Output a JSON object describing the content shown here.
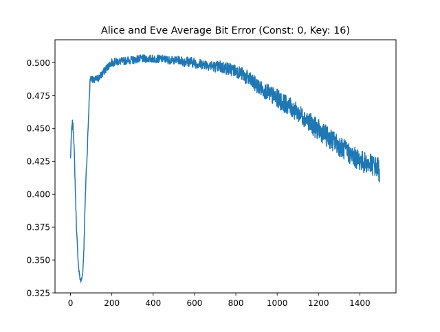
{
  "chart_data": {
    "type": "line",
    "title": "Alice and Eve Average Bit Error (Const: 0, Key: 16)",
    "xlabel": "",
    "ylabel": "",
    "xlim": [
      -75,
      1575
    ],
    "ylim": [
      0.325,
      0.5175
    ],
    "x_ticks": [
      0,
      200,
      400,
      600,
      800,
      1000,
      1200,
      1400
    ],
    "x_tick_labels": [
      "0",
      "200",
      "400",
      "600",
      "800",
      "1000",
      "1200",
      "1400"
    ],
    "y_ticks": [
      0.325,
      0.35,
      0.375,
      0.4,
      0.425,
      0.45,
      0.475,
      0.5
    ],
    "y_tick_labels": [
      "0.325",
      "0.350",
      "0.375",
      "0.400",
      "0.425",
      "0.450",
      "0.475",
      "0.500"
    ],
    "grid": false,
    "legend": "none",
    "series": [
      {
        "color": "#1f77b4",
        "x": [
          0,
          5,
          10,
          15,
          20,
          25,
          30,
          35,
          40,
          45,
          50,
          55,
          60,
          65,
          70,
          75,
          80,
          85,
          90,
          95,
          100,
          110,
          120,
          130,
          140,
          150,
          160,
          170,
          180,
          190,
          200,
          225,
          250,
          275,
          300,
          325,
          350,
          375,
          400,
          425,
          450,
          475,
          500,
          525,
          550,
          575,
          600,
          625,
          650,
          675,
          700,
          725,
          750,
          775,
          800,
          825,
          850,
          875,
          900,
          925,
          950,
          975,
          1000,
          1025,
          1050,
          1075,
          1100,
          1125,
          1150,
          1175,
          1200,
          1225,
          1250,
          1275,
          1300,
          1325,
          1350,
          1375,
          1400,
          1425,
          1450,
          1475,
          1485,
          1490,
          1495
        ],
        "values": [
          0.427,
          0.447,
          0.455,
          0.446,
          0.422,
          0.395,
          0.37,
          0.355,
          0.343,
          0.337,
          0.334,
          0.336,
          0.342,
          0.36,
          0.388,
          0.414,
          0.428,
          0.45,
          0.47,
          0.487,
          0.489,
          0.486,
          0.487,
          0.488,
          0.489,
          0.491,
          0.493,
          0.495,
          0.497,
          0.499,
          0.5,
          0.501,
          0.501,
          0.502,
          0.502,
          0.503,
          0.503,
          0.503,
          0.503,
          0.503,
          0.503,
          0.502,
          0.502,
          0.502,
          0.501,
          0.501,
          0.5,
          0.499,
          0.499,
          0.498,
          0.497,
          0.497,
          0.496,
          0.495,
          0.494,
          0.492,
          0.489,
          0.486,
          0.483,
          0.48,
          0.478,
          0.475,
          0.473,
          0.47,
          0.468,
          0.465,
          0.462,
          0.459,
          0.456,
          0.452,
          0.449,
          0.446,
          0.443,
          0.44,
          0.437,
          0.434,
          0.431,
          0.428,
          0.426,
          0.424,
          0.423,
          0.421,
          0.42,
          0.419,
          0.418
        ],
        "noise": [
          0.002,
          0.003,
          0.003,
          0.003,
          0.003,
          0.003,
          0.003,
          0.002,
          0.002,
          0.002,
          0.002,
          0.002,
          0.002,
          0.003,
          0.003,
          0.003,
          0.003,
          0.003,
          0.003,
          0.002,
          0.002,
          0.003,
          0.003,
          0.003,
          0.003,
          0.003,
          0.003,
          0.003,
          0.003,
          0.003,
          0.003,
          0.003,
          0.003,
          0.003,
          0.003,
          0.003,
          0.003,
          0.003,
          0.003,
          0.003,
          0.003,
          0.003,
          0.003,
          0.003,
          0.004,
          0.004,
          0.004,
          0.004,
          0.004,
          0.004,
          0.004,
          0.005,
          0.005,
          0.005,
          0.005,
          0.005,
          0.006,
          0.006,
          0.006,
          0.006,
          0.006,
          0.007,
          0.007,
          0.007,
          0.007,
          0.007,
          0.007,
          0.007,
          0.007,
          0.008,
          0.008,
          0.008,
          0.008,
          0.008,
          0.008,
          0.008,
          0.008,
          0.008,
          0.008,
          0.008,
          0.008,
          0.008,
          0.009,
          0.01,
          0.01
        ]
      }
    ]
  }
}
